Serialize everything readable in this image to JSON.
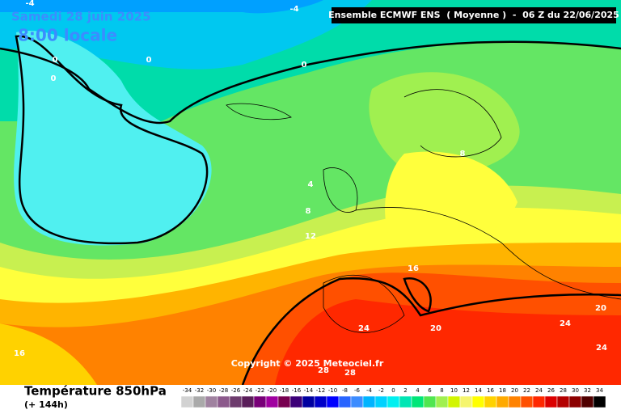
{
  "header": {
    "date": "Samedi 28 juin 2025",
    "time": "8:00 locale",
    "run": "Ensemble ECMWF ENS  ( Moyenne )  -  06 Z du 22/06/2025"
  },
  "map": {
    "copyright": "Copyright © 2025 Meteociel.fr",
    "contour_labels": [
      "-4",
      "-4",
      "0",
      "0",
      "0",
      "0",
      "4",
      "8",
      "8",
      "12",
      "16",
      "16",
      "20",
      "20",
      "24",
      "24",
      "24",
      "28",
      "28"
    ]
  },
  "footer": {
    "title": "Température 850hPa",
    "subtitle": "(+ 144h)"
  },
  "legend": {
    "values": [
      -34,
      -32,
      -30,
      -28,
      -26,
      -24,
      -22,
      -20,
      -18,
      -16,
      -14,
      -12,
      -10,
      -8,
      -6,
      -4,
      -2,
      0,
      2,
      4,
      6,
      8,
      10,
      12,
      14,
      16,
      18,
      20,
      22,
      24,
      26,
      28,
      30,
      32,
      34
    ],
    "colors": [
      "#d2d2d2",
      "#aaaaaa",
      "#a082a0",
      "#8c5a8c",
      "#6e3c6e",
      "#5a1e5a",
      "#780078",
      "#a000a0",
      "#780050",
      "#3c0078",
      "#0000a0",
      "#0000c8",
      "#0000ff",
      "#2864ff",
      "#3c8cff",
      "#00b4ff",
      "#00d2ff",
      "#00f0f0",
      "#00e6b4",
      "#00e678",
      "#50e650",
      "#a0f050",
      "#d2f500",
      "#f5f56e",
      "#ffff00",
      "#ffd200",
      "#ffaa00",
      "#ff8200",
      "#ff5000",
      "#ff2800",
      "#dc0000",
      "#b40000",
      "#8c0000",
      "#500000",
      "#000000"
    ]
  }
}
